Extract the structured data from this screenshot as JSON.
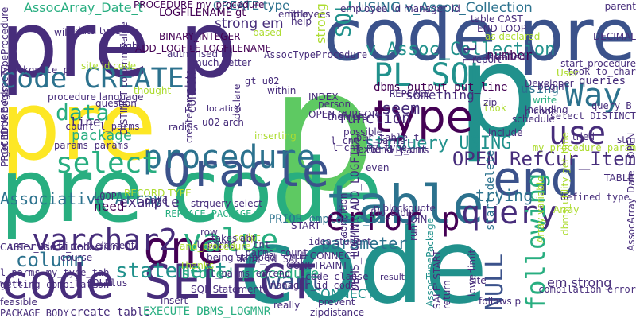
{
  "colors": {
    "background": "#ffffff",
    "palette": [
      "#440154",
      "#472d7b",
      "#3b528b",
      "#2c728e",
      "#21918c",
      "#28ae80",
      "#5ec962",
      "#addc30",
      "#fde725"
    ]
  },
  "words": [
    {
      "text": "code",
      "color": "#21918c"
    },
    {
      "text": "p",
      "color": "#5ec962"
    },
    {
      "text": "pre",
      "color": "#fde725"
    },
    {
      "text": "pre code",
      "color": "#28ae80"
    },
    {
      "text": "pre p",
      "color": "#472d7b"
    },
    {
      "text": "code pre",
      "color": "#3b528b"
    },
    {
      "text": "p",
      "color": "#21918c"
    },
    {
      "text": "table",
      "color": "#2c728e"
    },
    {
      "text": "code SELECT",
      "color": "#472d7b"
    },
    {
      "text": "Oracle",
      "color": "#3b528b"
    },
    {
      "text": "type",
      "color": "#440154"
    },
    {
      "text": "end",
      "color": "#3b528b"
    },
    {
      "text": "procedure",
      "color": "#2c728e"
    },
    {
      "text": "PL SQL",
      "color": "#21918c"
    },
    {
      "text": "code CREATE",
      "color": "#2c728e"
    },
    {
      "text": "one",
      "color": "#440154"
    },
    {
      "text": "use",
      "color": "#472d7b"
    },
    {
      "text": "select",
      "color": "#28ae80"
    },
    {
      "text": "query",
      "color": "#472d7b"
    },
    {
      "text": "value",
      "color": "#28ae80"
    },
    {
      "text": "varchar2",
      "color": "#472d7b"
    },
    {
      "text": "Way",
      "color": "#2c728e"
    },
    {
      "text": "following",
      "color": "#28ae80"
    },
    {
      "text": "NULL",
      "color": "#3b528b"
    },
    {
      "text": "error p",
      "color": "#440154"
    },
    {
      "text": "column",
      "color": "#2c728e"
    },
    {
      "text": "statement",
      "color": "#21918c"
    },
    {
      "text": "want",
      "color": "#3b528b"
    },
    {
      "text": "data",
      "color": "#28ae80"
    },
    {
      "text": "Associative Array",
      "color": "#2c728e"
    },
    {
      "text": "strQuery USING",
      "color": "#21918c"
    },
    {
      "text": "OPEN RefCur_Item",
      "color": "#472d7b"
    },
    {
      "text": "v_Assoc_Collection",
      "color": "#21918c"
    },
    {
      "text": "USING v_Assoc_Collection",
      "color": "#2c728e"
    },
    {
      "text": "strong em",
      "color": "#472d7b"
    },
    {
      "text": "CREATE type",
      "color": "#2c728e"
    },
    {
      "text": "AssocArray_Date_t",
      "color": "#28ae80"
    },
    {
      "text": "SQL",
      "color": "#21918c"
    },
    {
      "text": "package",
      "color": "#28ae80"
    },
    {
      "text": "example",
      "color": "#472d7b"
    },
    {
      "text": "stored procedure",
      "color": "#28ae80"
    },
    {
      "text": "function",
      "color": "#472d7b"
    },
    {
      "text": "seem",
      "color": "#472d7b"
    },
    {
      "text": "trying",
      "color": "#2c728e"
    },
    {
      "text": "parameter",
      "color": "#2c728e"
    },
    {
      "text": "CONNECT",
      "color": "#21918c"
    },
    {
      "text": "em strong",
      "color": "#472d7b"
    },
    {
      "text": "number",
      "color": "#440154"
    },
    {
      "text": "something",
      "color": "#472d7b"
    },
    {
      "text": "using",
      "color": "#2c728e"
    },
    {
      "text": "create table",
      "color": "#472d7b"
    },
    {
      "text": "EXECUTE DBMS_LOGMNR",
      "color": "#28ae80"
    },
    {
      "text": "DBMS_LOGMNR ADD_LOGFILE",
      "color": "#472d7b"
    },
    {
      "text": "need",
      "color": "#440154"
    },
    {
      "text": "line",
      "color": "#472d7b"
    },
    {
      "text": "Thanks",
      "color": "#addc30"
    },
    {
      "text": "lt",
      "color": "#472d7b"
    },
    {
      "text": "write",
      "color": "#28ae80"
    },
    {
      "text": "queries",
      "color": "#472d7b"
    },
    {
      "text": "begin",
      "color": "#472d7b"
    },
    {
      "text": "dbms_output put_line",
      "color": "#440154"
    },
    {
      "text": "REPLACE",
      "color": "#472d7b"
    },
    {
      "text": "count l_parms",
      "color": "#472d7b"
    },
    {
      "text": "params params",
      "color": "#472d7b"
    },
    {
      "text": "location",
      "color": "#472d7b"
    },
    {
      "text": "ADD_LOGFILE LOGFILENAME",
      "color": "#440154"
    },
    {
      "text": "LOGFILENAME gt",
      "color": "#440154"
    },
    {
      "text": "BINARY_INTEGER",
      "color": "#440154"
    },
    {
      "text": "much better",
      "color": "#472d7b"
    },
    {
      "text": "procedure language",
      "color": "#472d7b"
    },
    {
      "text": "user defined",
      "color": "#472d7b"
    },
    {
      "text": "l_parms my_type_tab",
      "color": "#472d7b"
    },
    {
      "text": "l_parms extend",
      "color": "#472d7b"
    },
    {
      "text": "l_parms count",
      "color": "#472d7b"
    },
    {
      "text": "l_parms l_cnt",
      "color": "#472d7b"
    },
    {
      "text": "code clause",
      "color": "#472d7b"
    },
    {
      "text": "manager_id code",
      "color": "#472d7b"
    },
    {
      "text": "PRIOR employee_id",
      "color": "#2c728e"
    },
    {
      "text": "REPLACE PACKAGE",
      "color": "#28ae80"
    },
    {
      "text": "start_delete",
      "color": "#2c728e"
    },
    {
      "text": "result",
      "color": "#472d7b"
    },
    {
      "text": "site",
      "color": "#472d7b"
    },
    {
      "text": "PACKAGE BODY",
      "color": "#472d7b"
    },
    {
      "text": "AssocTypePackage",
      "color": "#21918c"
    },
    {
      "text": "compilation error",
      "color": "#472d7b"
    },
    {
      "text": "zipdistance",
      "color": "#472d7b"
    },
    {
      "text": "employee_id manager_id",
      "color": "#472d7b"
    },
    {
      "text": "dept_id SALE",
      "color": "#472d7b"
    },
    {
      "text": "l_cnt l_parms",
      "color": "#472d7b"
    },
    {
      "text": "extend l_cnt",
      "color": "#472d7b"
    },
    {
      "text": "defined type",
      "color": "#472d7b"
    },
    {
      "text": "l_cnt l_parms",
      "color": "#472d7b"
    },
    {
      "text": "took to_char",
      "color": "#472d7b"
    },
    {
      "text": "query B",
      "color": "#472d7b"
    },
    {
      "text": "select DISTINCT",
      "color": "#472d7b"
    },
    {
      "text": "my_procedure param",
      "color": "#addc30"
    },
    {
      "text": "gt u02",
      "color": "#472d7b"
    },
    {
      "text": "SQLPlus",
      "color": "#472d7b"
    },
    {
      "text": "LOOP",
      "color": "#472d7b"
    },
    {
      "text": "date",
      "color": "#472d7b"
    },
    {
      "text": "idea",
      "color": "#472d7b"
    },
    {
      "text": "work",
      "color": "#472d7b"
    },
    {
      "text": "getting compilation",
      "color": "#472d7b"
    },
    {
      "text": "bar_table_t",
      "color": "#472d7b"
    },
    {
      "text": "l_cnt my_type",
      "color": "#472d7b"
    },
    {
      "text": "person",
      "color": "#472d7b"
    },
    {
      "text": "OPEN CURSOR",
      "color": "#472d7b"
    },
    {
      "text": "u02 arch",
      "color": "#472d7b"
    },
    {
      "text": "right",
      "color": "#472d7b"
    },
    {
      "text": "authorised by",
      "color": "#472d7b"
    },
    {
      "text": "table CAST",
      "color": "#472d7b"
    },
    {
      "text": "END LOOP",
      "color": "#472d7b"
    },
    {
      "text": "employees",
      "color": "#472d7b"
    },
    {
      "text": "PROCEDURE my_procedure",
      "color": "#440154"
    },
    {
      "text": "AssocTypeProcedure",
      "color": "#472d7b"
    },
    {
      "text": "blockquote p",
      "color": "#472d7b"
    },
    {
      "text": "get_time begin",
      "color": "#472d7b"
    },
    {
      "text": "installed",
      "color": "#472d7b"
    },
    {
      "text": "Developer",
      "color": "#472d7b"
    },
    {
      "text": "possible",
      "color": "#472d7b"
    },
    {
      "text": "lowerlimit",
      "color": "#472d7b"
    },
    {
      "text": "strong",
      "color": "#addc30"
    },
    {
      "text": "will",
      "color": "#472d7b"
    },
    {
      "text": "within",
      "color": "#472d7b"
    },
    {
      "text": "radius",
      "color": "#472d7b"
    },
    {
      "text": "look",
      "color": "#addc30"
    },
    {
      "text": "include",
      "color": "#472d7b"
    },
    {
      "text": "schedule",
      "color": "#472d7b"
    },
    {
      "text": "including",
      "color": "#472d7b"
    },
    {
      "text": "p code",
      "color": "#472d7b"
    },
    {
      "text": "zip",
      "color": "#472d7b"
    },
    {
      "text": "start_procedure",
      "color": "#472d7b"
    },
    {
      "text": "parent",
      "color": "#472d7b"
    },
    {
      "text": "DECIMAL",
      "color": "#472d7b"
    },
    {
      "text": "as declared",
      "color": "#addc30"
    },
    {
      "text": "data type",
      "color": "#472d7b"
    },
    {
      "text": "based",
      "color": "#addc30"
    },
    {
      "text": "little",
      "color": "#472d7b"
    },
    {
      "text": "help",
      "color": "#472d7b"
    },
    {
      "text": "question",
      "color": "#472d7b"
    },
    {
      "text": "tried",
      "color": "#472d7b"
    },
    {
      "text": "stru",
      "color": "#472d7b"
    },
    {
      "text": "AssocArray_Date_t OPEN",
      "color": "#472d7b"
    },
    {
      "text": "dbms_utility get_time",
      "color": "#addc30"
    },
    {
      "text": "Array variable",
      "color": "#addc30"
    },
    {
      "text": "CAST v_Assoc_Collection",
      "color": "#472d7b"
    },
    {
      "text": "student",
      "color": "#472d7b"
    },
    {
      "text": "SQL Statement",
      "color": "#472d7b"
    },
    {
      "text": "null CONNECT",
      "color": "#472d7b"
    },
    {
      "text": "follows p",
      "color": "#472d7b"
    },
    {
      "text": "really",
      "color": "#472d7b"
    },
    {
      "text": "prevent",
      "color": "#472d7b"
    },
    {
      "text": "insert",
      "color": "#472d7b"
    },
    {
      "text": "feasible",
      "color": "#472d7b"
    },
    {
      "text": "course",
      "color": "#472d7b"
    },
    {
      "text": "script",
      "color": "#addc30"
    },
    {
      "text": "START",
      "color": "#472d7b"
    },
    {
      "text": "CONSTRAINT",
      "color": "#472d7b"
    },
    {
      "text": "JOIN",
      "color": "#472d7b"
    },
    {
      "text": "condition",
      "color": "#472d7b"
    },
    {
      "text": "p blockquote",
      "color": "#472d7b"
    },
    {
      "text": "TABLE",
      "color": "#472d7b"
    },
    {
      "text": "foo_table_t",
      "color": "#472d7b"
    },
    {
      "text": "strquery select",
      "color": "#472d7b"
    },
    {
      "text": "element",
      "color": "#472d7b"
    },
    {
      "text": "RECORD TYPE",
      "color": "#addc30"
    },
    {
      "text": "SALE' START",
      "color": "#472d7b"
    },
    {
      "text": "and_procedure",
      "color": "#addc30"
    },
    {
      "text": "being stripped",
      "color": "#472d7b"
    },
    {
      "text": "INDEX",
      "color": "#472d7b"
    },
    {
      "text": "themers",
      "color": "#472d7b"
    },
    {
      "text": "report",
      "color": "#472d7b"
    },
    {
      "text": "inserting",
      "color": "#addc30"
    },
    {
      "text": "thought",
      "color": "#addc30"
    },
    {
      "text": "declare",
      "color": "#472d7b"
    },
    {
      "text": "createTemplate",
      "color": "#472d7b"
    },
    {
      "text": "DISTINCT column_value",
      "color": "#472d7b"
    },
    {
      "text": "CURSOR USING",
      "color": "#472d7b"
    },
    {
      "text": "site id code",
      "color": "#addc30"
    },
    {
      "text": "PROCEDURE AssocTypeProcedure",
      "color": "#472d7b"
    },
    {
      "text": "p",
      "color": "#472d7b"
    },
    {
      "text": "run",
      "color": "#472d7b"
    },
    {
      "text": "row",
      "color": "#472d7b"
    },
    {
      "text": "takes abt",
      "color": "#472d7b"
    },
    {
      "text": "Array",
      "color": "#addc30"
    },
    {
      "text": "return",
      "color": "#472d7b"
    },
    {
      "text": "User",
      "color": "#addc30"
    },
    {
      "text": "even",
      "color": "#472d7b"
    }
  ]
}
